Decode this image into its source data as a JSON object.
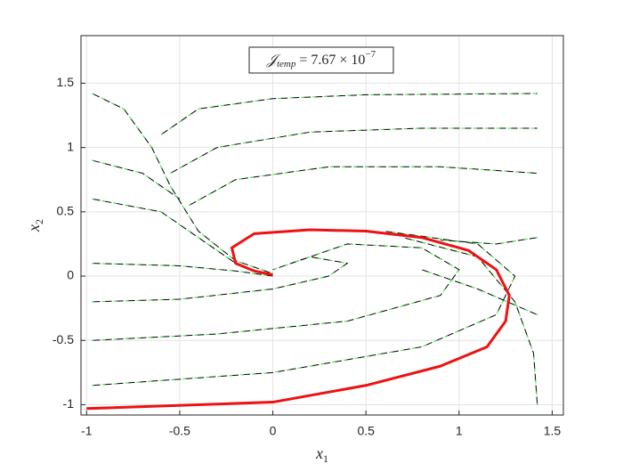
{
  "chart_data": {
    "type": "line",
    "annotation": {
      "symbol": "𝒥",
      "subscript": "temp",
      "text": " = 7.67 × 10",
      "exponent": "−7"
    },
    "xlabel": {
      "text": "x",
      "subscript": "1"
    },
    "ylabel": {
      "text": "x",
      "subscript": "2"
    },
    "xlim": [
      -1.03,
      1.56
    ],
    "ylim": [
      -1.08,
      1.87
    ],
    "xticks": [
      -1,
      -0.5,
      0,
      0.5,
      1,
      1.5
    ],
    "yticks": [
      -1,
      -0.5,
      0,
      0.5,
      1,
      1.5
    ],
    "grid": true,
    "streamline_colors": [
      "#000000",
      "#33ee33"
    ],
    "streamlines": [
      {
        "x": [
          -0.97,
          -0.8,
          -0.65,
          -0.55,
          -0.4,
          -0.2,
          0
        ],
        "y": [
          1.42,
          1.3,
          1.0,
          0.7,
          0.35,
          0.12,
          0.02
        ]
      },
      {
        "x": [
          -0.6,
          -0.4,
          0,
          0.5,
          1.42
        ],
        "y": [
          1.1,
          1.3,
          1.38,
          1.41,
          1.42
        ]
      },
      {
        "x": [
          -0.55,
          -0.3,
          0.2,
          0.8,
          1.42
        ],
        "y": [
          0.8,
          1.0,
          1.12,
          1.15,
          1.15
        ]
      },
      {
        "x": [
          -0.45,
          -0.2,
          0.3,
          0.9,
          1.42
        ],
        "y": [
          0.55,
          0.75,
          0.85,
          0.85,
          0.8
        ]
      },
      {
        "x": [
          -0.97,
          -0.7,
          -0.5
        ],
        "y": [
          0.9,
          0.8,
          0.6
        ]
      },
      {
        "x": [
          -0.97,
          -0.6,
          -0.4,
          -0.2
        ],
        "y": [
          0.6,
          0.5,
          0.3,
          0.1
        ]
      },
      {
        "x": [
          -0.97,
          -0.5,
          -0.2,
          0
        ],
        "y": [
          0.1,
          0.08,
          0.04,
          0
        ]
      },
      {
        "x": [
          -0.97,
          -0.5,
          0,
          0.3,
          0.4,
          0.2,
          0
        ],
        "y": [
          -0.2,
          -0.18,
          -0.1,
          0,
          0.1,
          0.15,
          0.05
        ]
      },
      {
        "x": [
          -0.97,
          -0.3,
          0.4,
          0.9,
          1.0,
          0.8,
          0.4,
          0.1
        ],
        "y": [
          -0.5,
          -0.45,
          -0.35,
          -0.15,
          0.05,
          0.22,
          0.25,
          0.1
        ]
      },
      {
        "x": [
          -0.97,
          0,
          0.8,
          1.2,
          1.3,
          1.1,
          0.6
        ],
        "y": [
          -0.85,
          -0.75,
          -0.55,
          -0.3,
          0,
          0.25,
          0.35
        ]
      },
      {
        "x": [
          1.42,
          1.4,
          1.3,
          1.1,
          0.7
        ],
        "y": [
          -1.0,
          -0.6,
          -0.2,
          0.15,
          0.3
        ]
      },
      {
        "x": [
          1.42,
          1.2,
          0.9
        ],
        "y": [
          0.3,
          0.25,
          0.28
        ]
      },
      {
        "x": [
          1.42,
          1.1,
          0.8
        ],
        "y": [
          -0.3,
          -0.1,
          0.05
        ]
      }
    ],
    "trajectory": {
      "color": "#ee1111",
      "x": [
        -1.0,
        0,
        0.5,
        0.9,
        1.15,
        1.25,
        1.27,
        1.2,
        1.05,
        0.8,
        0.5,
        0.2,
        -0.1,
        -0.22,
        -0.2,
        -0.1,
        0
      ],
      "y": [
        -1.03,
        -0.98,
        -0.85,
        -0.7,
        -0.55,
        -0.35,
        -0.15,
        0.05,
        0.2,
        0.3,
        0.35,
        0.36,
        0.33,
        0.22,
        0.1,
        0.04,
        0.01
      ]
    }
  }
}
